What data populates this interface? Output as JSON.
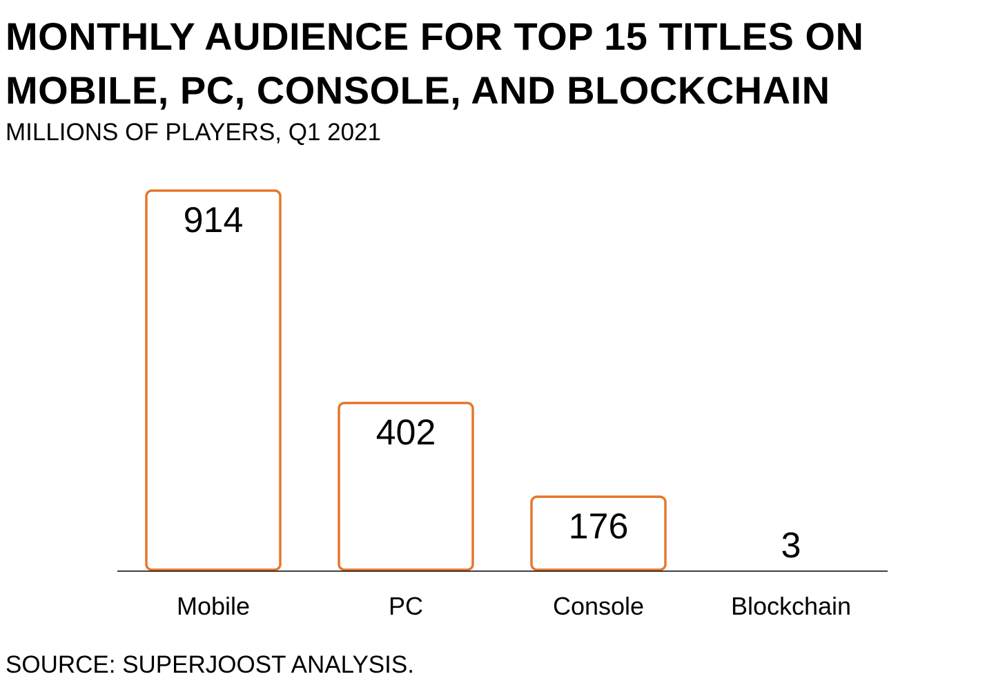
{
  "header": {
    "title_line1": "MONTHLY AUDIENCE FOR TOP 15 TITLES ON",
    "title_line2": "MOBILE, PC, CONSOLE, AND BLOCKCHAIN",
    "subtitle": "MILLIONS OF PLAYERS, Q1 2021"
  },
  "footer": {
    "source": "SOURCE: SUPERJOOST ANALYSIS."
  },
  "colors": {
    "bar_outline": "#E8762C",
    "bar_fill": "#FFFFFF",
    "axis": "#000000",
    "text": "#000000"
  },
  "chart_data": {
    "type": "bar",
    "title": "MONTHLY AUDIENCE FOR TOP 15 TITLES ON MOBILE, PC, CONSOLE, AND BLOCKCHAIN",
    "subtitle": "MILLIONS OF PLAYERS, Q1 2021",
    "categories": [
      "Mobile",
      "PC",
      "Console",
      "Blockchain"
    ],
    "values": [
      914,
      402,
      176,
      3
    ],
    "data_labels": [
      "914",
      "402",
      "176",
      "3"
    ],
    "xlabel": "",
    "ylabel": "",
    "ylim": [
      0,
      914
    ],
    "y_axis_shown": false,
    "grid": false,
    "legend": "none",
    "data_label_position": "inside-top"
  }
}
